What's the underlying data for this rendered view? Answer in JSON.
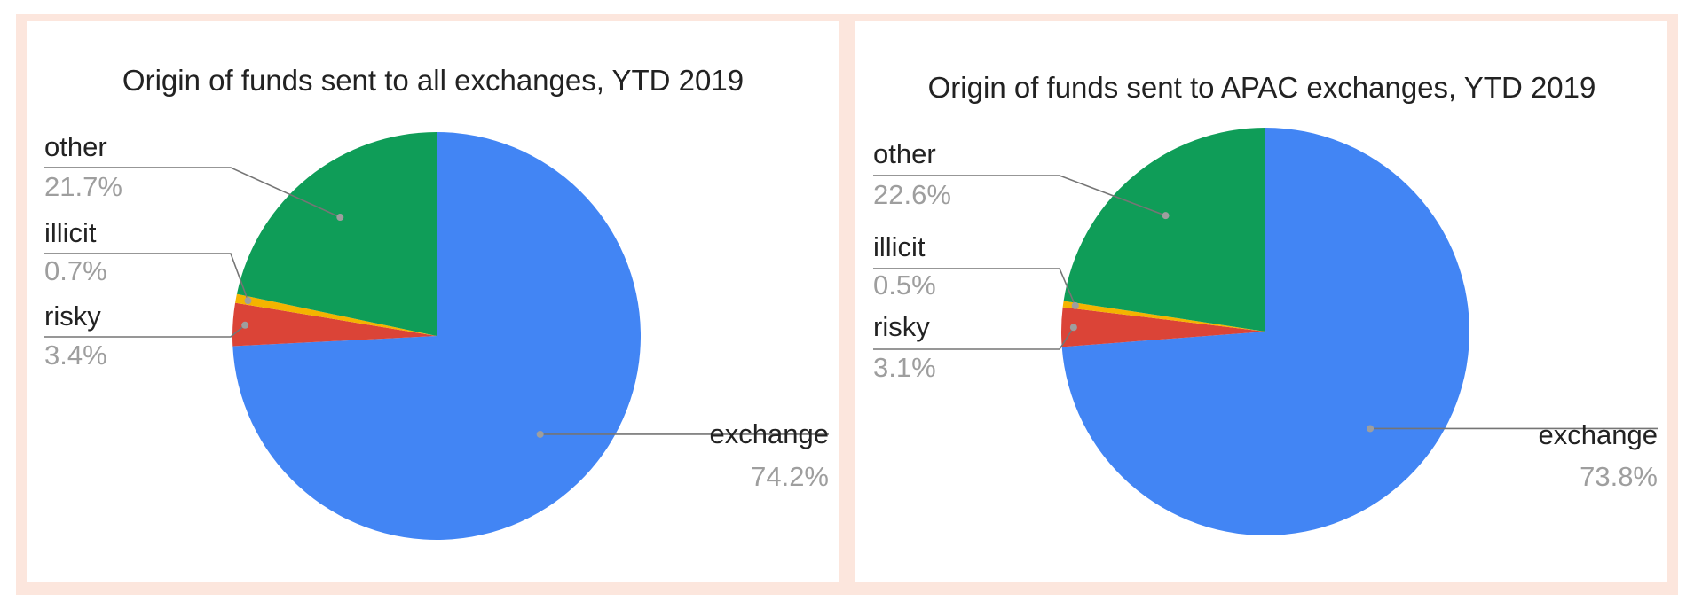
{
  "chart_data": [
    {
      "type": "pie",
      "title": "Origin of funds sent to all exchanges, YTD 2019",
      "slices": [
        {
          "label": "exchange",
          "value": 74.2,
          "display": "74.2%",
          "color": "#4285f4"
        },
        {
          "label": "risky",
          "value": 3.4,
          "display": "3.4%",
          "color": "#db4437"
        },
        {
          "label": "illicit",
          "value": 0.7,
          "display": "0.7%",
          "color": "#f4b400"
        },
        {
          "label": "other",
          "value": 21.7,
          "display": "21.7%",
          "color": "#0f9d58"
        }
      ]
    },
    {
      "type": "pie",
      "title": "Origin of funds sent to APAC exchanges, YTD 2019",
      "slices": [
        {
          "label": "exchange",
          "value": 73.8,
          "display": "73.8%",
          "color": "#4285f4"
        },
        {
          "label": "risky",
          "value": 3.1,
          "display": "3.1%",
          "color": "#db4437"
        },
        {
          "label": "illicit",
          "value": 0.5,
          "display": "0.5%",
          "color": "#f4b400"
        },
        {
          "label": "other",
          "value": 22.6,
          "display": "22.6%",
          "color": "#0f9d58"
        }
      ]
    }
  ]
}
